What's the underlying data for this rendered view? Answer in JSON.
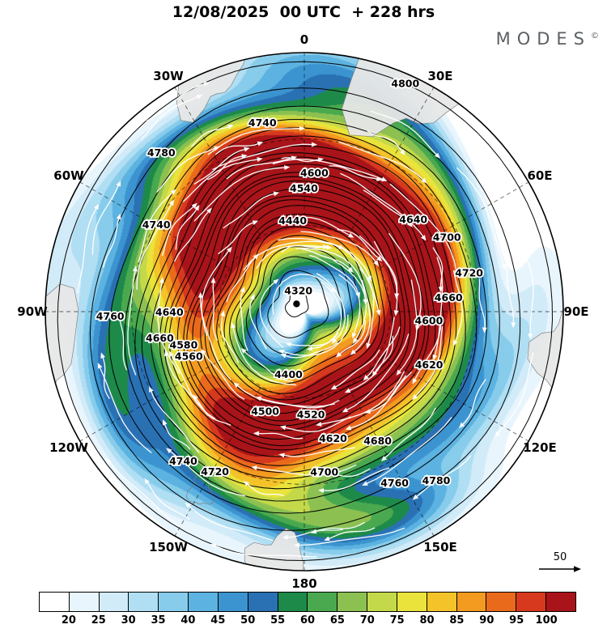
{
  "title": "12/08/2025  00 UTC  + 228 hrs",
  "brand": {
    "name": "MODES",
    "mark": "©"
  },
  "chart_data": {
    "type": "heatmap",
    "projection": "polar-stereographic",
    "orientation": "0 at top, 90E right, 180 bottom, 90W left",
    "title": "12/08/2025 00 UTC + 228 hrs",
    "shaded_field": "wind speed",
    "contour_field": "geopotential height",
    "flow_direction": "clockwise",
    "reference_arrow_label": "50",
    "colorbar": {
      "levels": [
        20,
        25,
        30,
        35,
        40,
        45,
        50,
        55,
        60,
        65,
        70,
        75,
        80,
        85,
        90,
        95,
        100
      ],
      "colors": [
        "#ffffff",
        "#e8f5fc",
        "#d2ebf8",
        "#b0def3",
        "#88cceb",
        "#5cb2e0",
        "#3b94cf",
        "#2a71b4",
        "#1d8a4a",
        "#4aa94f",
        "#8cc152",
        "#c4d94a",
        "#e9e33b",
        "#f4c32a",
        "#f39a20",
        "#ea6a1c",
        "#d6391d",
        "#a81419"
      ]
    },
    "contour_levels": [
      4320,
      4340,
      4360,
      4380,
      4400,
      4420,
      4440,
      4460,
      4480,
      4500,
      4520,
      4540,
      4560,
      4580,
      4600,
      4620,
      4640,
      4660,
      4680,
      4700,
      4720,
      4740,
      4760,
      4780,
      4800
    ],
    "contour_labels": [
      {
        "value": 4320,
        "angle_deg": 8
      },
      {
        "value": 4400,
        "angle_deg": 188
      },
      {
        "value": 4440,
        "angle_deg": 356
      },
      {
        "value": 4500,
        "angle_deg": 198
      },
      {
        "value": 4520,
        "angle_deg": 174
      },
      {
        "value": 4540,
        "angle_deg": 2
      },
      {
        "value": 4560,
        "angle_deg": 246
      },
      {
        "value": 4580,
        "angle_deg": 252
      },
      {
        "value": 4600,
        "angle_deg": 6
      },
      {
        "value": 4600,
        "angle_deg": 96
      },
      {
        "value": 4620,
        "angle_deg": 166
      },
      {
        "value": 4620,
        "angle_deg": 114
      },
      {
        "value": 4640,
        "angle_deg": 52
      },
      {
        "value": 4640,
        "angle_deg": 268
      },
      {
        "value": 4660,
        "angle_deg": 258
      },
      {
        "value": 4660,
        "angle_deg": 86
      },
      {
        "value": 4680,
        "angle_deg": 150
      },
      {
        "value": 4700,
        "angle_deg": 172
      },
      {
        "value": 4700,
        "angle_deg": 64
      },
      {
        "value": 4720,
        "angle_deg": 208
      },
      {
        "value": 4720,
        "angle_deg": 78
      },
      {
        "value": 4740,
        "angle_deg": 348
      },
      {
        "value": 4740,
        "angle_deg": 218
      },
      {
        "value": 4740,
        "angle_deg": 300
      },
      {
        "value": 4760,
        "angle_deg": 268
      },
      {
        "value": 4760,
        "angle_deg": 152
      },
      {
        "value": 4780,
        "angle_deg": 318
      },
      {
        "value": 4780,
        "angle_deg": 142
      },
      {
        "value": 4800,
        "angle_deg": 24
      }
    ],
    "longitude_labels": [
      {
        "label": "0",
        "angle_deg": 0
      },
      {
        "label": "30E",
        "angle_deg": 30
      },
      {
        "label": "60E",
        "angle_deg": 60
      },
      {
        "label": "90E",
        "angle_deg": 90
      },
      {
        "label": "120E",
        "angle_deg": 120
      },
      {
        "label": "150E",
        "angle_deg": 150
      },
      {
        "label": "180",
        "angle_deg": 180
      },
      {
        "label": "150W",
        "angle_deg": 210
      },
      {
        "label": "120W",
        "angle_deg": 240
      },
      {
        "label": "90W",
        "angle_deg": 270
      },
      {
        "label": "60W",
        "angle_deg": 300
      },
      {
        "label": "30W",
        "angle_deg": 330
      }
    ]
  }
}
